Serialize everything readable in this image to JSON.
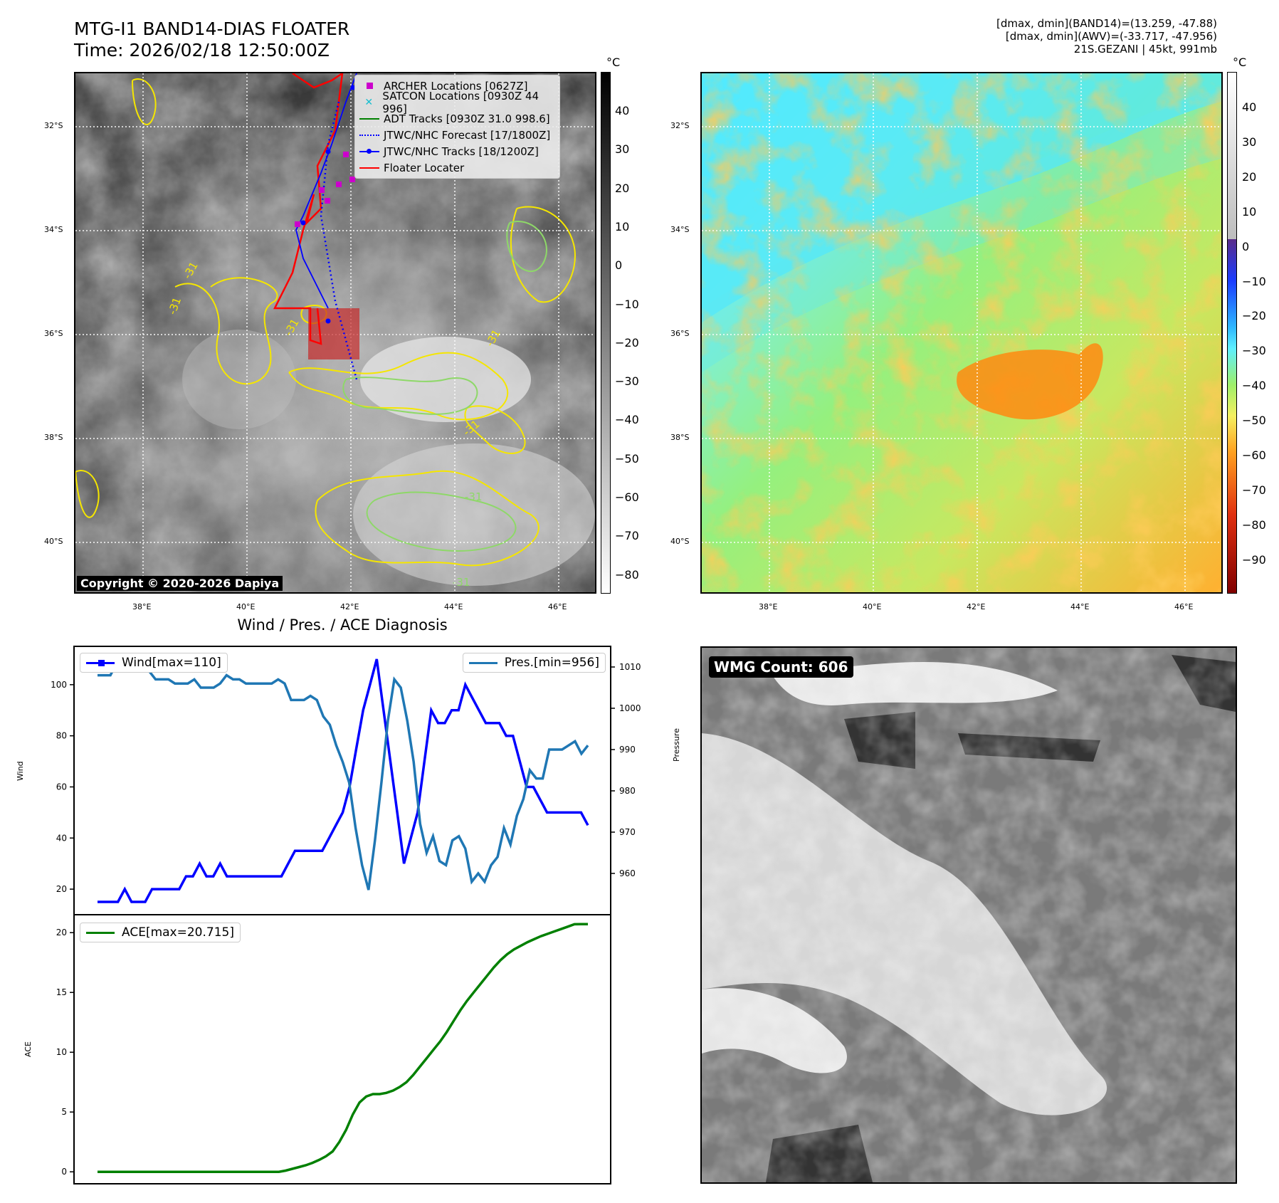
{
  "header": {
    "title_line1": "MTG-I1 BAND14-DIAS FLOATER",
    "title_line2": "Time: 2026/02/18 12:50:00Z",
    "right_line1": "[dmax, dmin](BAND14)=(13.259, -47.88)",
    "right_line2": "[dmax, dmin](AWV)=(-33.717, -47.956)",
    "right_line3": "21S.GEZANI | 45kt, 991mb"
  },
  "map": {
    "lat_labels": [
      "32°S",
      "34°S",
      "36°S",
      "38°S",
      "40°S"
    ],
    "lon_labels": [
      "38°E",
      "40°E",
      "42°E",
      "44°E",
      "46°E"
    ],
    "colorbar_unit": "°C",
    "ir_colorbar_ticks": [
      "40",
      "30",
      "20",
      "10",
      "0",
      "−10",
      "−20",
      "−30",
      "−40",
      "−50",
      "−60",
      "−70",
      "−80"
    ],
    "wv_colorbar_ticks": [
      "40",
      "30",
      "20",
      "10",
      "0",
      "−10",
      "−20",
      "−30",
      "−40",
      "−50",
      "−60",
      "−70",
      "−80",
      "−90"
    ],
    "contour_label": "-31",
    "copyright": "Copyright © 2020-2026 Dapiya",
    "legend": [
      {
        "label": "ARCHER Locations [0627Z]",
        "symbol": "square",
        "color": "#cc00cc"
      },
      {
        "label": "SATCON Locations [0930Z 44 996]",
        "symbol": "x",
        "color": "#17becf"
      },
      {
        "label": "ADT Tracks [0930Z 31.0 998.6]",
        "symbol": "line",
        "color": "#008000"
      },
      {
        "label": "JTWC/NHC Forecast [17/1800Z]",
        "symbol": "dotted",
        "color": "#0000ff"
      },
      {
        "label": "JTWC/NHC Tracks [18/1200Z]",
        "symbol": "line-dot",
        "color": "#0000ff"
      },
      {
        "label": "Floater Locater",
        "symbol": "line",
        "color": "#ff0000"
      }
    ]
  },
  "diagnosis": {
    "title": "Wind / Pres. / ACE Diagnosis",
    "wind_legend": "Wind[max=110]",
    "pres_legend": "Pres.[min=956]",
    "ace_legend": "ACE[max=20.715]",
    "wind_axis_label": "Wind",
    "pres_axis_label": "Pressure",
    "ace_axis_label": "ACE",
    "wmg_label": "WMG Count: 606"
  },
  "chart_data": [
    {
      "type": "line",
      "title": "Wind / Pres. / ACE Diagnosis",
      "ylabel": "Wind",
      "ylim": [
        10,
        115
      ],
      "yticks": [
        20,
        40,
        60,
        80,
        100
      ],
      "color": "#0000ff",
      "series": [
        {
          "name": "Wind[max=110]",
          "values": [
            15,
            15,
            15,
            15,
            20,
            15,
            15,
            15,
            20,
            20,
            20,
            20,
            20,
            25,
            25,
            30,
            25,
            25,
            30,
            25,
            25,
            25,
            25,
            25,
            25,
            25,
            25,
            25,
            30,
            35,
            35,
            35,
            35,
            35,
            40,
            45,
            50,
            60,
            75,
            90,
            100,
            110,
            90,
            70,
            50,
            30,
            40,
            50,
            70,
            90,
            85,
            85,
            90,
            90,
            100,
            95,
            90,
            85,
            85,
            85,
            80,
            80,
            70,
            60,
            60,
            55,
            50,
            50,
            50,
            50,
            50,
            50,
            45
          ]
        }
      ]
    },
    {
      "type": "line",
      "ylabel": "Pressure",
      "ylim": [
        950,
        1015
      ],
      "yticks": [
        960,
        970,
        980,
        990,
        1000,
        1010
      ],
      "color": "#1f77b4",
      "series": [
        {
          "name": "Pres.[min=956]",
          "values": [
            1008,
            1008,
            1008,
            1011,
            1011,
            1011,
            1011,
            1011,
            1009,
            1007,
            1007,
            1007,
            1006,
            1006,
            1006,
            1007,
            1005,
            1005,
            1005,
            1006,
            1008,
            1007,
            1007,
            1006,
            1006,
            1006,
            1006,
            1006,
            1007,
            1006,
            1002,
            1002,
            1002,
            1003,
            1002,
            998,
            996,
            991,
            987,
            982,
            971,
            962,
            956,
            968,
            982,
            997,
            1007,
            1005,
            997,
            987,
            972,
            965,
            969,
            963,
            962,
            968,
            969,
            966,
            958,
            960,
            958,
            962,
            964,
            971,
            967,
            974,
            978,
            985,
            983,
            983,
            990,
            990,
            990,
            991,
            992,
            989,
            991
          ]
        }
      ]
    },
    {
      "type": "line",
      "ylabel": "ACE",
      "ylim": [
        -1,
        21.5
      ],
      "yticks": [
        0,
        5,
        10,
        15,
        20
      ],
      "color": "#008000",
      "series": [
        {
          "name": "ACE[max=20.715]",
          "values": [
            0,
            0,
            0,
            0,
            0,
            0,
            0,
            0,
            0,
            0,
            0,
            0,
            0,
            0,
            0,
            0,
            0,
            0,
            0,
            0,
            0,
            0,
            0,
            0,
            0,
            0,
            0,
            0,
            0.1,
            0.25,
            0.4,
            0.55,
            0.75,
            1.0,
            1.3,
            1.7,
            2.5,
            3.5,
            4.8,
            5.8,
            6.3,
            6.5,
            6.5,
            6.6,
            6.8,
            7.1,
            7.5,
            8.1,
            8.8,
            9.5,
            10.2,
            10.9,
            11.7,
            12.6,
            13.5,
            14.3,
            15.0,
            15.7,
            16.4,
            17.1,
            17.7,
            18.2,
            18.6,
            18.9,
            19.2,
            19.45,
            19.7,
            19.9,
            20.1,
            20.3,
            20.5,
            20.7,
            20.715,
            20.715
          ]
        }
      ]
    }
  ]
}
